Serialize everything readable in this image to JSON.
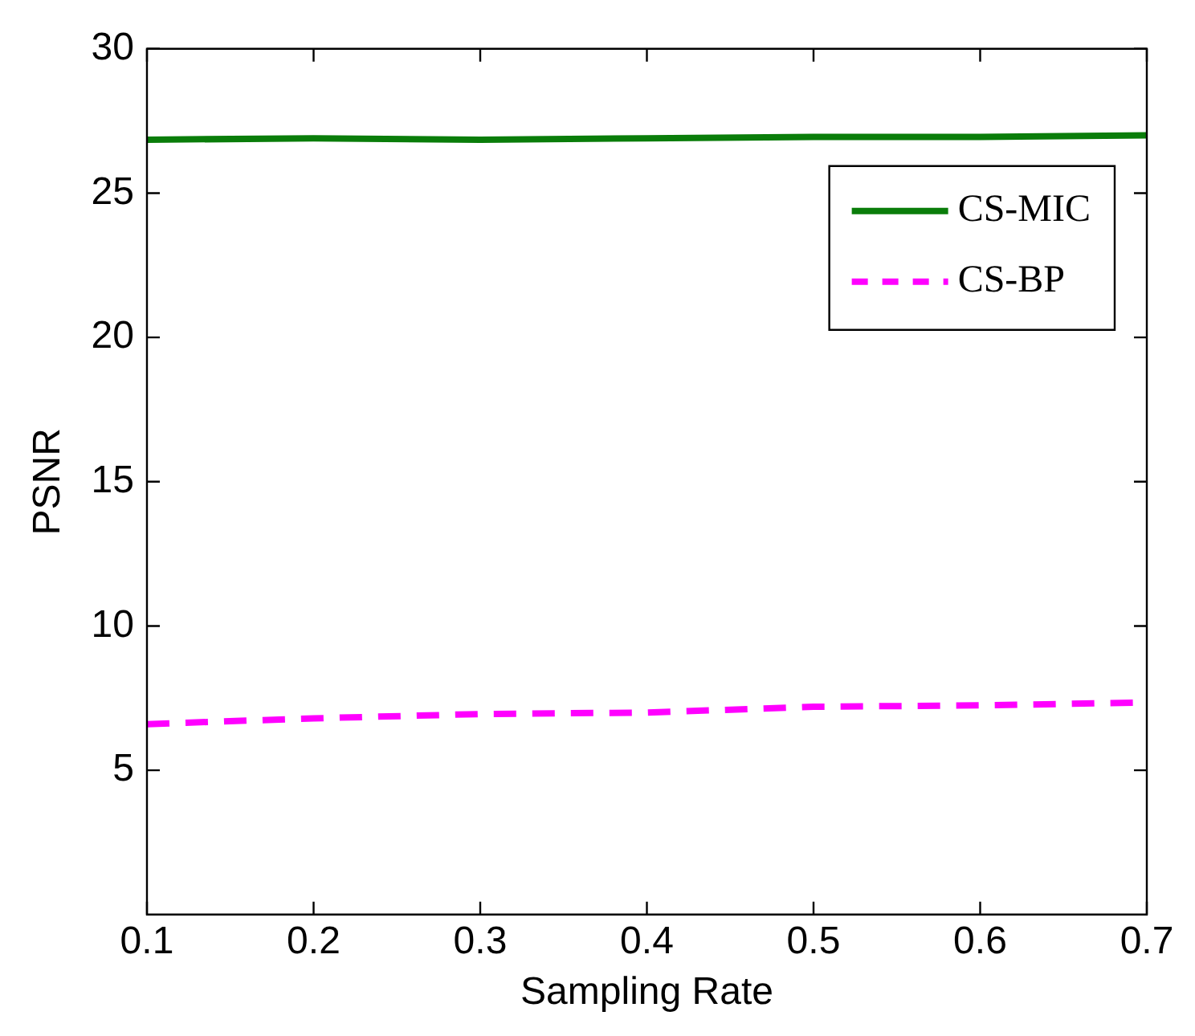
{
  "chart_data": {
    "type": "line",
    "xlabel": "Sampling Rate",
    "ylabel": "PSNR",
    "x": [
      0.1,
      0.2,
      0.3,
      0.4,
      0.5,
      0.6,
      0.7
    ],
    "series": [
      {
        "name": "CS-MIC",
        "color": "#0a7d0a",
        "line_style": "solid",
        "values": [
          26.85,
          26.9,
          26.85,
          26.9,
          26.95,
          26.95,
          27.0
        ]
      },
      {
        "name": "CS-BP",
        "color": "#ff00ff",
        "line_style": "dashed",
        "values": [
          6.6,
          6.8,
          6.95,
          7.0,
          7.2,
          7.25,
          7.35
        ]
      }
    ],
    "xlim": [
      0.1,
      0.7
    ],
    "xticks": [
      0.1,
      0.2,
      0.3,
      0.4,
      0.5,
      0.6,
      0.7
    ],
    "ylim": [
      0,
      30
    ],
    "yticks": [
      5,
      10,
      15,
      20,
      25,
      30
    ],
    "grid": false,
    "legend": "top right",
    "marker": "none"
  }
}
